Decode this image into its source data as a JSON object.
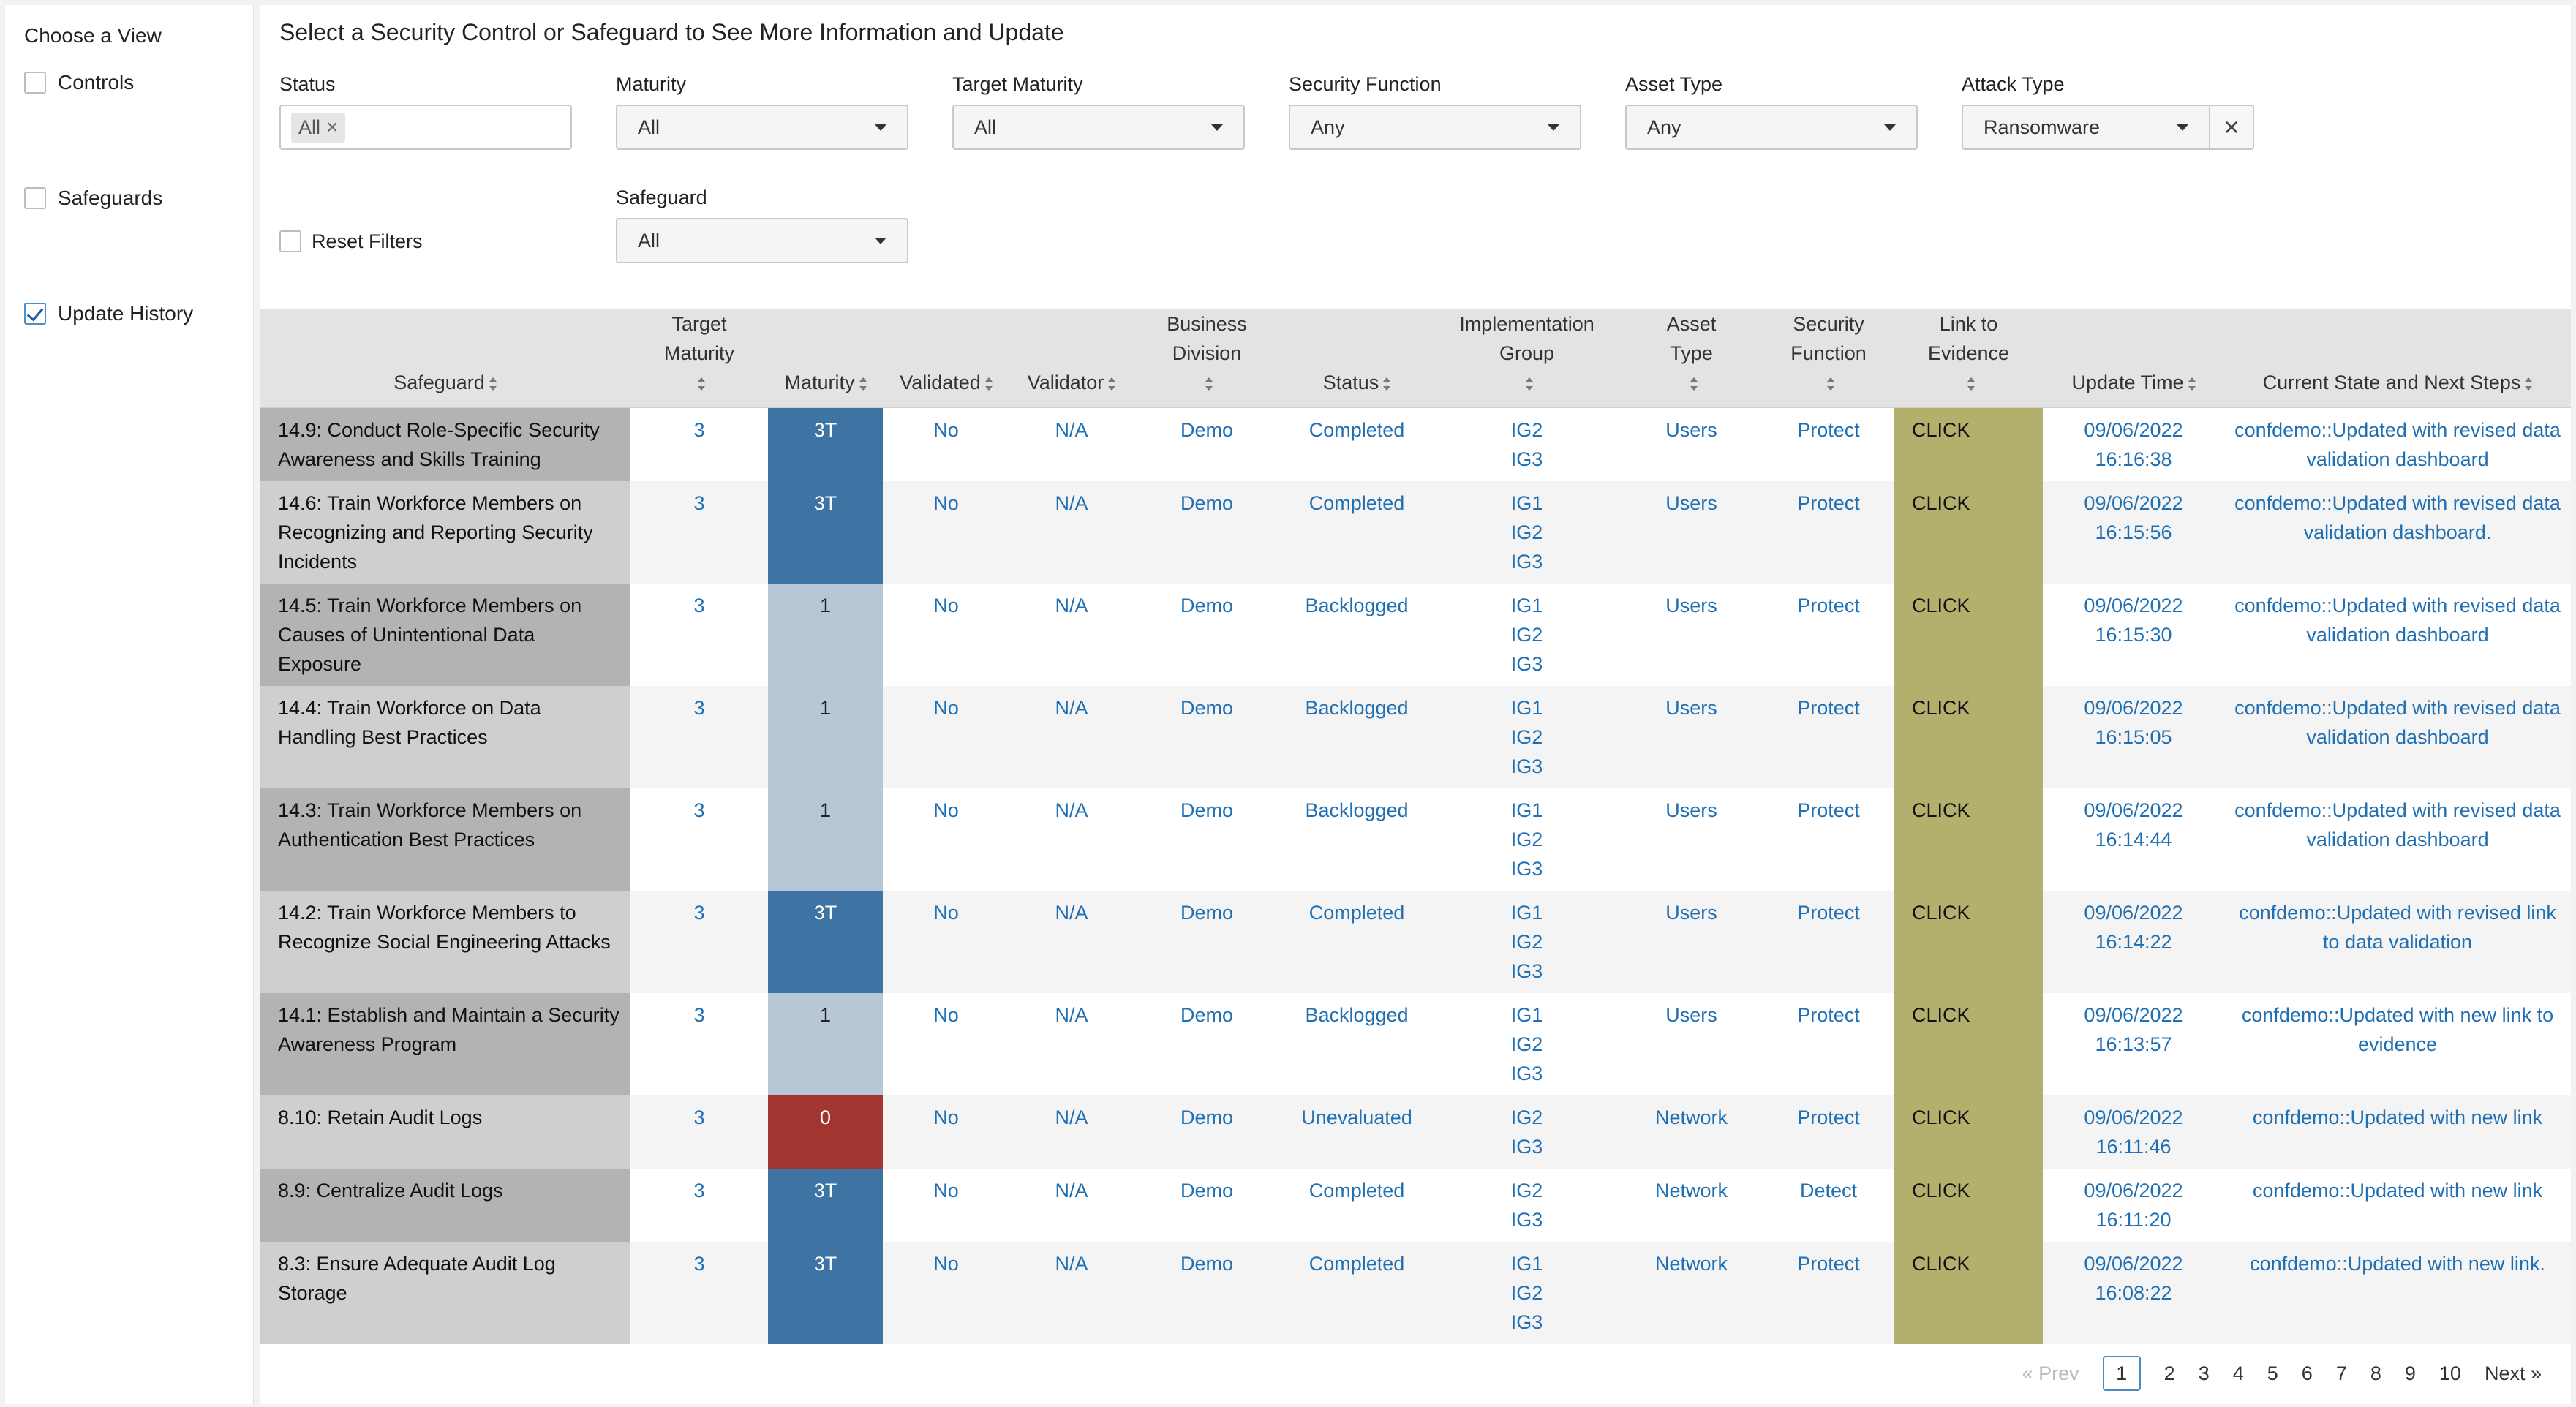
{
  "view_panel": {
    "title": "Choose a View",
    "options": [
      {
        "label": "Controls",
        "checked": false
      },
      {
        "label": "Safeguards",
        "checked": false
      },
      {
        "label": "Update History",
        "checked": true
      }
    ]
  },
  "main": {
    "heading": "Select a Security Control or Safeguard to See More Information and Update"
  },
  "filters": {
    "status": {
      "label": "Status",
      "chip": "All"
    },
    "maturity": {
      "label": "Maturity",
      "value": "All"
    },
    "target_maturity": {
      "label": "Target Maturity",
      "value": "All"
    },
    "security_function": {
      "label": "Security Function",
      "value": "Any"
    },
    "asset_type": {
      "label": "Asset Type",
      "value": "Any"
    },
    "attack_type": {
      "label": "Attack Type",
      "value": "Ransomware"
    },
    "safeguard": {
      "label": "Safeguard",
      "value": "All"
    },
    "reset": {
      "label": "Reset Filters",
      "checked": false
    }
  },
  "table": {
    "headers": [
      [
        "Safeguard"
      ],
      [
        "Target",
        "Maturity"
      ],
      [
        "Maturity"
      ],
      [
        "Validated"
      ],
      [
        "Validator"
      ],
      [
        "Business",
        "Division"
      ],
      [
        "Status"
      ],
      [
        "Implementation",
        "Group"
      ],
      [
        "Asset",
        "Type"
      ],
      [
        "Security",
        "Function"
      ],
      [
        "Link to",
        "Evidence"
      ],
      [
        "Update Time"
      ],
      [
        "Current State and Next Steps"
      ]
    ],
    "rows": [
      {
        "safeguard": "14.9: Conduct Role-Specific Security Awareness and Skills Training",
        "target": "3",
        "maturity": "3T",
        "maturity_color": "#3d74a3",
        "validated": "No",
        "validator": "N/A",
        "division": "Demo",
        "status": "Completed",
        "groups": [
          "IG2",
          "IG3"
        ],
        "asset": "Users",
        "function": "Protect",
        "link": "CLICK",
        "date": "09/06/2022",
        "time": "16:16:38",
        "notes": "confdemo::Updated with revised data validation dashboard"
      },
      {
        "safeguard": "14.6: Train Workforce Members on Recognizing and Reporting Security Incidents",
        "target": "3",
        "maturity": "3T",
        "maturity_color": "#3d74a3",
        "validated": "No",
        "validator": "N/A",
        "division": "Demo",
        "status": "Completed",
        "groups": [
          "IG1",
          "IG2",
          "IG3"
        ],
        "asset": "Users",
        "function": "Protect",
        "link": "CLICK",
        "date": "09/06/2022",
        "time": "16:15:56",
        "notes": "confdemo::Updated with revised data validation dashboard."
      },
      {
        "safeguard": "14.5: Train Workforce Members on Causes of Unintentional Data Exposure",
        "target": "3",
        "maturity": "1",
        "maturity_color": "#b8c7d6",
        "validated": "No",
        "validator": "N/A",
        "division": "Demo",
        "status": "Backlogged",
        "groups": [
          "IG1",
          "IG2",
          "IG3"
        ],
        "asset": "Users",
        "function": "Protect",
        "link": "CLICK",
        "date": "09/06/2022",
        "time": "16:15:30",
        "notes": "confdemo::Updated with revised data validation dashboard"
      },
      {
        "safeguard": "14.4: Train Workforce on Data Handling Best Practices",
        "target": "3",
        "maturity": "1",
        "maturity_color": "#b8c7d6",
        "validated": "No",
        "validator": "N/A",
        "division": "Demo",
        "status": "Backlogged",
        "groups": [
          "IG1",
          "IG2",
          "IG3"
        ],
        "asset": "Users",
        "function": "Protect",
        "link": "CLICK",
        "date": "09/06/2022",
        "time": "16:15:05",
        "notes": "confdemo::Updated with revised data validation dashboard"
      },
      {
        "safeguard": "14.3: Train Workforce Members on Authentication Best Practices",
        "target": "3",
        "maturity": "1",
        "maturity_color": "#b8c7d6",
        "validated": "No",
        "validator": "N/A",
        "division": "Demo",
        "status": "Backlogged",
        "groups": [
          "IG1",
          "IG2",
          "IG3"
        ],
        "asset": "Users",
        "function": "Protect",
        "link": "CLICK",
        "date": "09/06/2022",
        "time": "16:14:44",
        "notes": "confdemo::Updated with revised data validation dashboard"
      },
      {
        "safeguard": "14.2: Train Workforce Members to Recognize Social Engineering Attacks",
        "target": "3",
        "maturity": "3T",
        "maturity_color": "#3d74a3",
        "validated": "No",
        "validator": "N/A",
        "division": "Demo",
        "status": "Completed",
        "groups": [
          "IG1",
          "IG2",
          "IG3"
        ],
        "asset": "Users",
        "function": "Protect",
        "link": "CLICK",
        "date": "09/06/2022",
        "time": "16:14:22",
        "notes": "confdemo::Updated with revised link to data validation"
      },
      {
        "safeguard": "14.1: Establish and Maintain a Security Awareness Program",
        "target": "3",
        "maturity": "1",
        "maturity_color": "#b8c7d6",
        "validated": "No",
        "validator": "N/A",
        "division": "Demo",
        "status": "Backlogged",
        "groups": [
          "IG1",
          "IG2",
          "IG3"
        ],
        "asset": "Users",
        "function": "Protect",
        "link": "CLICK",
        "date": "09/06/2022",
        "time": "16:13:57",
        "notes": "confdemo::Updated with new link to evidence"
      },
      {
        "safeguard": "8.10: Retain Audit Logs",
        "target": "3",
        "maturity": "0",
        "maturity_color": "#a33530",
        "validated": "No",
        "validator": "N/A",
        "division": "Demo",
        "status": "Unevaluated",
        "groups": [
          "IG2",
          "IG3"
        ],
        "asset": "Network",
        "function": "Protect",
        "link": "CLICK",
        "date": "09/06/2022",
        "time": "16:11:46",
        "notes": "confdemo::Updated with new link"
      },
      {
        "safeguard": "8.9: Centralize Audit Logs",
        "target": "3",
        "maturity": "3T",
        "maturity_color": "#3d74a3",
        "validated": "No",
        "validator": "N/A",
        "division": "Demo",
        "status": "Completed",
        "groups": [
          "IG2",
          "IG3"
        ],
        "asset": "Network",
        "function": "Detect",
        "link": "CLICK",
        "date": "09/06/2022",
        "time": "16:11:20",
        "notes": "confdemo::Updated with new link"
      },
      {
        "safeguard": "8.3: Ensure Adequate Audit Log Storage",
        "target": "3",
        "maturity": "3T",
        "maturity_color": "#3d74a3",
        "validated": "No",
        "validator": "N/A",
        "division": "Demo",
        "status": "Completed",
        "groups": [
          "IG1",
          "IG2",
          "IG3"
        ],
        "asset": "Network",
        "function": "Protect",
        "link": "CLICK",
        "date": "09/06/2022",
        "time": "16:08:22",
        "notes": "confdemo::Updated with new link."
      }
    ]
  },
  "pagination": {
    "prev": "« Prev",
    "pages": [
      "1",
      "2",
      "3",
      "4",
      "5",
      "6",
      "7",
      "8",
      "9",
      "10"
    ],
    "current": "1",
    "next": "Next »"
  }
}
